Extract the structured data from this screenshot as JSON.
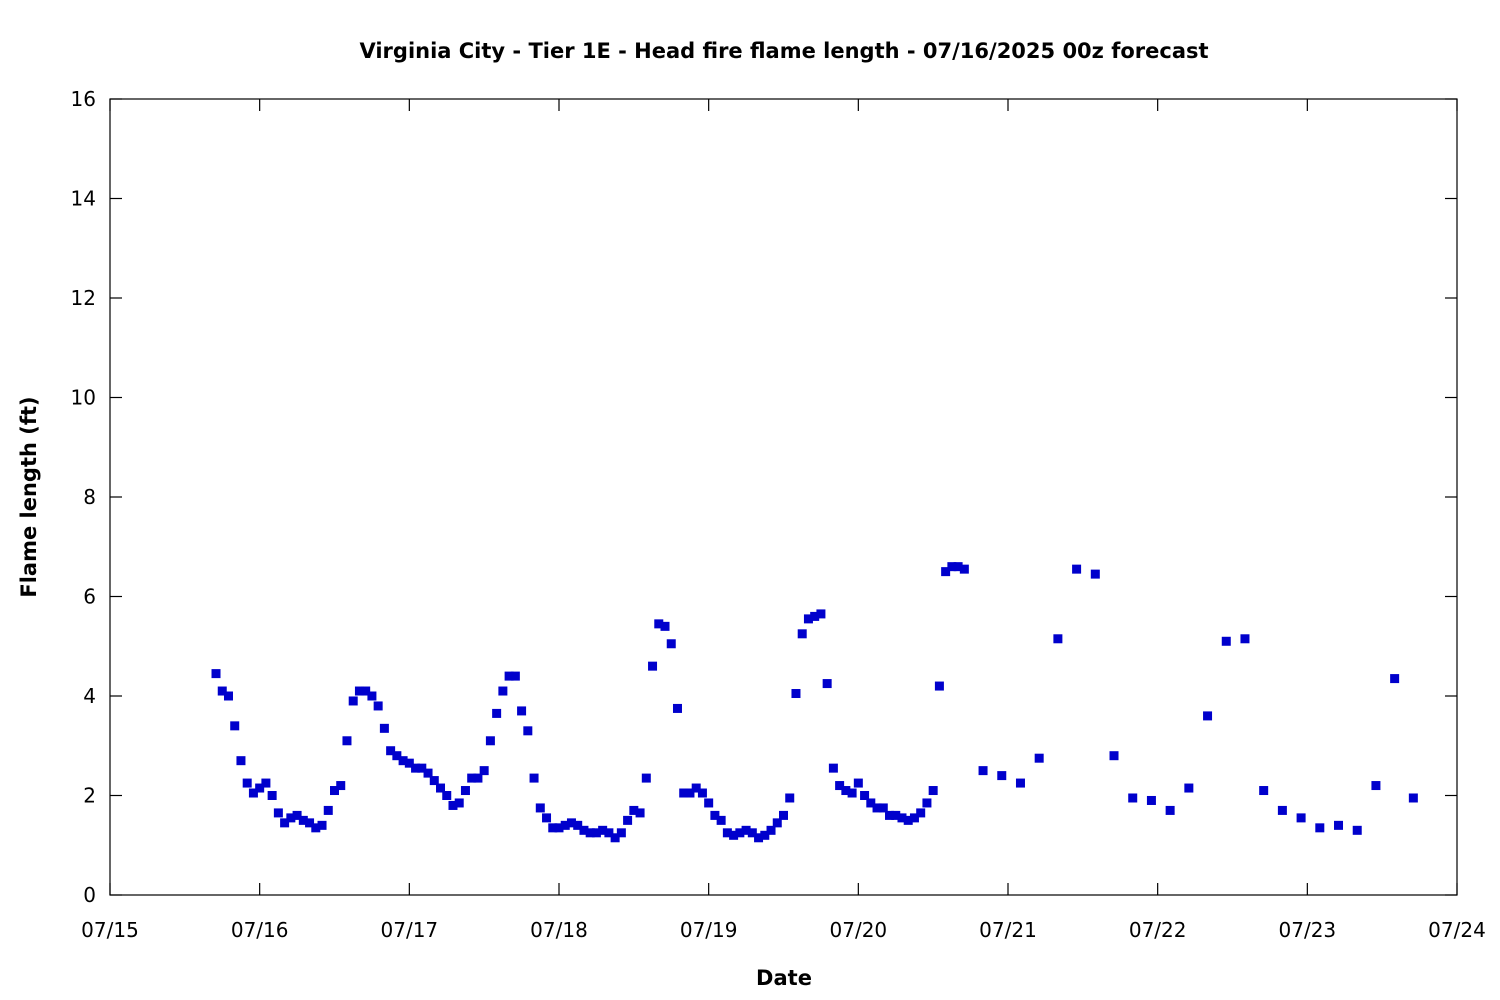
{
  "chart_data": {
    "type": "scatter",
    "title": "Virginia City - Tier 1E - Head fire flame length - 07/16/2025 00z forecast",
    "xlabel": "Date",
    "ylabel": "Flame length (ft)",
    "x_tick_labels": [
      "07/15",
      "07/16",
      "07/17",
      "07/18",
      "07/19",
      "07/20",
      "07/21",
      "07/22",
      "07/23",
      "07/24"
    ],
    "y_tick_labels": [
      "0",
      "2",
      "4",
      "6",
      "8",
      "10",
      "12",
      "14",
      "16"
    ],
    "xlim": [
      "2025-07-15 00:00",
      "2025-07-24 00:00"
    ],
    "ylim": [
      0,
      16
    ],
    "grid": false,
    "marker_color": "#0000cc",
    "series": [
      {
        "points": [
          [
            "2025-07-15 17:00",
            4.45
          ],
          [
            "2025-07-15 18:00",
            4.1
          ],
          [
            "2025-07-15 19:00",
            4.0
          ],
          [
            "2025-07-15 20:00",
            3.4
          ],
          [
            "2025-07-15 21:00",
            2.7
          ],
          [
            "2025-07-15 22:00",
            2.25
          ],
          [
            "2025-07-15 23:00",
            2.05
          ],
          [
            "2025-07-16 00:00",
            2.15
          ],
          [
            "2025-07-16 01:00",
            2.25
          ],
          [
            "2025-07-16 02:00",
            2.0
          ],
          [
            "2025-07-16 03:00",
            1.65
          ],
          [
            "2025-07-16 04:00",
            1.45
          ],
          [
            "2025-07-16 05:00",
            1.55
          ],
          [
            "2025-07-16 06:00",
            1.6
          ],
          [
            "2025-07-16 07:00",
            1.5
          ],
          [
            "2025-07-16 08:00",
            1.45
          ],
          [
            "2025-07-16 09:00",
            1.35
          ],
          [
            "2025-07-16 10:00",
            1.4
          ],
          [
            "2025-07-16 11:00",
            1.7
          ],
          [
            "2025-07-16 12:00",
            2.1
          ],
          [
            "2025-07-16 13:00",
            2.2
          ],
          [
            "2025-07-16 14:00",
            3.1
          ],
          [
            "2025-07-16 15:00",
            3.9
          ],
          [
            "2025-07-16 16:00",
            4.1
          ],
          [
            "2025-07-16 17:00",
            4.1
          ],
          [
            "2025-07-16 18:00",
            4.0
          ],
          [
            "2025-07-16 19:00",
            3.8
          ],
          [
            "2025-07-16 20:00",
            3.35
          ],
          [
            "2025-07-16 21:00",
            2.9
          ],
          [
            "2025-07-16 22:00",
            2.8
          ],
          [
            "2025-07-16 23:00",
            2.7
          ],
          [
            "2025-07-17 00:00",
            2.65
          ],
          [
            "2025-07-17 01:00",
            2.55
          ],
          [
            "2025-07-17 02:00",
            2.55
          ],
          [
            "2025-07-17 03:00",
            2.45
          ],
          [
            "2025-07-17 04:00",
            2.3
          ],
          [
            "2025-07-17 05:00",
            2.15
          ],
          [
            "2025-07-17 06:00",
            2.0
          ],
          [
            "2025-07-17 07:00",
            1.8
          ],
          [
            "2025-07-17 08:00",
            1.85
          ],
          [
            "2025-07-17 09:00",
            2.1
          ],
          [
            "2025-07-17 10:00",
            2.35
          ],
          [
            "2025-07-17 11:00",
            2.35
          ],
          [
            "2025-07-17 12:00",
            2.5
          ],
          [
            "2025-07-17 13:00",
            3.1
          ],
          [
            "2025-07-17 14:00",
            3.65
          ],
          [
            "2025-07-17 15:00",
            4.1
          ],
          [
            "2025-07-17 16:00",
            4.4
          ],
          [
            "2025-07-17 17:00",
            4.4
          ],
          [
            "2025-07-17 18:00",
            3.7
          ],
          [
            "2025-07-17 19:00",
            3.3
          ],
          [
            "2025-07-17 20:00",
            2.35
          ],
          [
            "2025-07-17 21:00",
            1.75
          ],
          [
            "2025-07-17 22:00",
            1.55
          ],
          [
            "2025-07-17 23:00",
            1.35
          ],
          [
            "2025-07-18 00:00",
            1.35
          ],
          [
            "2025-07-18 01:00",
            1.4
          ],
          [
            "2025-07-18 02:00",
            1.45
          ],
          [
            "2025-07-18 03:00",
            1.4
          ],
          [
            "2025-07-18 04:00",
            1.3
          ],
          [
            "2025-07-18 05:00",
            1.25
          ],
          [
            "2025-07-18 06:00",
            1.25
          ],
          [
            "2025-07-18 07:00",
            1.3
          ],
          [
            "2025-07-18 08:00",
            1.25
          ],
          [
            "2025-07-18 09:00",
            1.15
          ],
          [
            "2025-07-18 10:00",
            1.25
          ],
          [
            "2025-07-18 11:00",
            1.5
          ],
          [
            "2025-07-18 12:00",
            1.7
          ],
          [
            "2025-07-18 13:00",
            1.65
          ],
          [
            "2025-07-18 14:00",
            2.35
          ],
          [
            "2025-07-18 15:00",
            4.6
          ],
          [
            "2025-07-18 16:00",
            5.45
          ],
          [
            "2025-07-18 17:00",
            5.4
          ],
          [
            "2025-07-18 18:00",
            5.05
          ],
          [
            "2025-07-18 19:00",
            3.75
          ],
          [
            "2025-07-18 20:00",
            2.05
          ],
          [
            "2025-07-18 21:00",
            2.05
          ],
          [
            "2025-07-18 22:00",
            2.15
          ],
          [
            "2025-07-18 23:00",
            2.05
          ],
          [
            "2025-07-19 00:00",
            1.85
          ],
          [
            "2025-07-19 01:00",
            1.6
          ],
          [
            "2025-07-19 02:00",
            1.5
          ],
          [
            "2025-07-19 03:00",
            1.25
          ],
          [
            "2025-07-19 04:00",
            1.2
          ],
          [
            "2025-07-19 05:00",
            1.25
          ],
          [
            "2025-07-19 06:00",
            1.3
          ],
          [
            "2025-07-19 07:00",
            1.25
          ],
          [
            "2025-07-19 08:00",
            1.15
          ],
          [
            "2025-07-19 09:00",
            1.2
          ],
          [
            "2025-07-19 10:00",
            1.3
          ],
          [
            "2025-07-19 11:00",
            1.45
          ],
          [
            "2025-07-19 12:00",
            1.6
          ],
          [
            "2025-07-19 13:00",
            1.95
          ],
          [
            "2025-07-19 14:00",
            4.05
          ],
          [
            "2025-07-19 15:00",
            5.25
          ],
          [
            "2025-07-19 16:00",
            5.55
          ],
          [
            "2025-07-19 17:00",
            5.6
          ],
          [
            "2025-07-19 18:00",
            5.65
          ],
          [
            "2025-07-19 19:00",
            4.25
          ],
          [
            "2025-07-19 20:00",
            2.55
          ],
          [
            "2025-07-19 21:00",
            2.2
          ],
          [
            "2025-07-19 22:00",
            2.1
          ],
          [
            "2025-07-19 23:00",
            2.05
          ],
          [
            "2025-07-20 00:00",
            2.25
          ],
          [
            "2025-07-20 01:00",
            2.0
          ],
          [
            "2025-07-20 02:00",
            1.85
          ],
          [
            "2025-07-20 03:00",
            1.75
          ],
          [
            "2025-07-20 04:00",
            1.75
          ],
          [
            "2025-07-20 05:00",
            1.6
          ],
          [
            "2025-07-20 06:00",
            1.6
          ],
          [
            "2025-07-20 07:00",
            1.55
          ],
          [
            "2025-07-20 08:00",
            1.5
          ],
          [
            "2025-07-20 09:00",
            1.55
          ],
          [
            "2025-07-20 10:00",
            1.65
          ],
          [
            "2025-07-20 11:00",
            1.85
          ],
          [
            "2025-07-20 12:00",
            2.1
          ],
          [
            "2025-07-20 13:00",
            4.2
          ],
          [
            "2025-07-20 14:00",
            6.5
          ],
          [
            "2025-07-20 15:00",
            6.6
          ],
          [
            "2025-07-20 16:00",
            6.6
          ],
          [
            "2025-07-20 17:00",
            6.55
          ],
          [
            "2025-07-20 20:00",
            2.5
          ],
          [
            "2025-07-20 23:00",
            2.4
          ],
          [
            "2025-07-21 02:00",
            2.25
          ],
          [
            "2025-07-21 05:00",
            2.75
          ],
          [
            "2025-07-21 08:00",
            5.15
          ],
          [
            "2025-07-21 11:00",
            6.55
          ],
          [
            "2025-07-21 14:00",
            6.45
          ],
          [
            "2025-07-21 17:00",
            2.8
          ],
          [
            "2025-07-21 20:00",
            1.95
          ],
          [
            "2025-07-21 23:00",
            1.9
          ],
          [
            "2025-07-22 02:00",
            1.7
          ],
          [
            "2025-07-22 05:00",
            2.15
          ],
          [
            "2025-07-22 08:00",
            3.6
          ],
          [
            "2025-07-22 11:00",
            5.1
          ],
          [
            "2025-07-22 14:00",
            5.15
          ],
          [
            "2025-07-22 17:00",
            2.1
          ],
          [
            "2025-07-22 20:00",
            1.7
          ],
          [
            "2025-07-22 23:00",
            1.55
          ],
          [
            "2025-07-23 02:00",
            1.35
          ],
          [
            "2025-07-23 05:00",
            1.4
          ],
          [
            "2025-07-23 08:00",
            1.3
          ],
          [
            "2025-07-23 11:00",
            2.2
          ],
          [
            "2025-07-23 14:00",
            4.35
          ],
          [
            "2025-07-23 17:00",
            1.95
          ]
        ]
      }
    ]
  }
}
